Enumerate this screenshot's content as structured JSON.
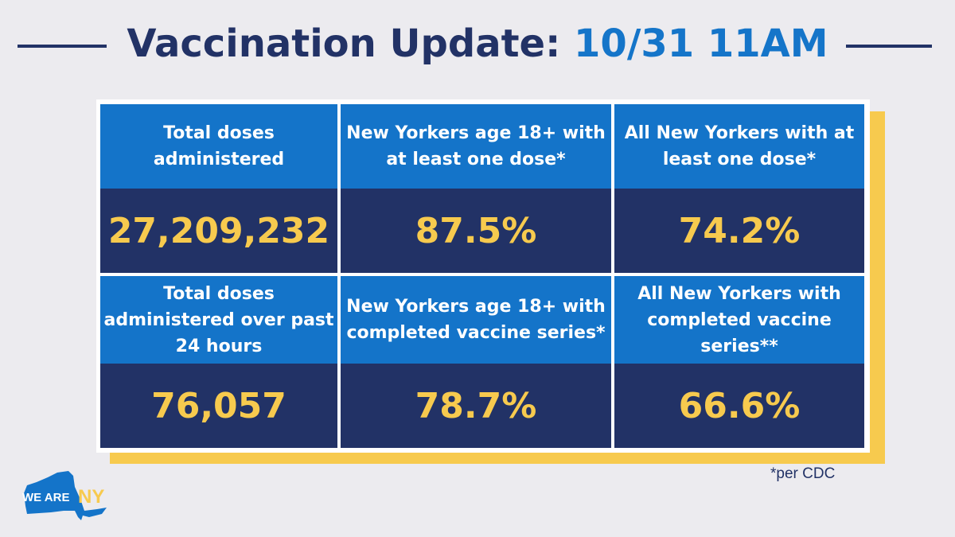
{
  "header": {
    "title_prefix": "Vaccination Update:",
    "title_date": "10/31 11AM"
  },
  "stats": [
    {
      "label": "Total doses administered",
      "value": "27,209,232"
    },
    {
      "label": "New Yorkers age 18+ with at least one dose*",
      "value": "87.5%"
    },
    {
      "label": "All New Yorkers with at least one dose*",
      "value": "74.2%"
    },
    {
      "label": "Total doses administered over past 24 hours",
      "value": "76,057"
    },
    {
      "label": "New Yorkers age 18+ with completed vaccine series*",
      "value": "78.7%"
    },
    {
      "label": "All New Yorkers with completed vaccine series**",
      "value": "66.6%"
    }
  ],
  "footnote": "*per CDC",
  "logo": {
    "text": "WE ARE NY"
  },
  "colors": {
    "navy": "#223266",
    "blue": "#1474c9",
    "yellow": "#f7ca4e",
    "background": "#ecebef"
  }
}
